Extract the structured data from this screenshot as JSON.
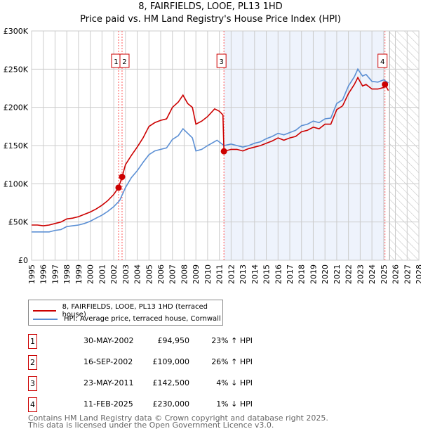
{
  "chart_data": {
    "type": "line",
    "title": "8, FAIRFIELDS, LOOE, PL13 1HD",
    "subtitle": "Price paid vs. HM Land Registry's House Price Index (HPI)",
    "xlim": [
      1995,
      2028
    ],
    "ylim": [
      0,
      300000
    ],
    "x_ticks": [
      "1995",
      "1996",
      "1997",
      "1998",
      "1999",
      "2000",
      "2001",
      "2002",
      "2003",
      "2004",
      "2005",
      "2006",
      "2007",
      "2008",
      "2009",
      "2010",
      "2011",
      "2012",
      "2013",
      "2014",
      "2015",
      "2016",
      "2017",
      "2018",
      "2019",
      "2020",
      "2021",
      "2022",
      "2023",
      "2024",
      "2025",
      "2026",
      "2027",
      "2028"
    ],
    "y_ticks": [
      {
        "v": 0,
        "label": "£0"
      },
      {
        "v": 50000,
        "label": "£50K"
      },
      {
        "v": 100000,
        "label": "£100K"
      },
      {
        "v": 150000,
        "label": "£150K"
      },
      {
        "v": 200000,
        "label": "£200K"
      },
      {
        "v": 250000,
        "label": "£250K"
      },
      {
        "v": 300000,
        "label": "£300K"
      }
    ],
    "grid": true,
    "shaded_range": [
      2011.39,
      2025.11
    ],
    "future_hatch_from": 2025.5,
    "colors": {
      "property": "#cc0000",
      "hpi": "#5b8fd4",
      "shade": "#eef3fc",
      "vline": "#ff5555"
    },
    "series": [
      {
        "name": "8, FAIRFIELDS, LOOE, PL13 1HD (terraced house)",
        "x": [
          1995,
          1995.5,
          1996,
          1996.5,
          1997,
          1997.5,
          1998,
          1998.5,
          1999,
          1999.5,
          2000,
          2000.5,
          2001,
          2001.5,
          2002,
          2002.41,
          2002.71,
          2003,
          2003.5,
          2004,
          2004.5,
          2005,
          2005.5,
          2006,
          2006.5,
          2007,
          2007.5,
          2007.9,
          2008.3,
          2008.7,
          2009,
          2009.5,
          2010,
          2010.6,
          2011,
          2011.3,
          2011.39,
          2012,
          2012.5,
          2013,
          2013.5,
          2014,
          2014.5,
          2015,
          2015.5,
          2016,
          2016.5,
          2017,
          2017.5,
          2018,
          2018.5,
          2019,
          2019.5,
          2020,
          2020.5,
          2021,
          2021.5,
          2022,
          2022.5,
          2022.8,
          2023.2,
          2023.5,
          2024,
          2024.5,
          2025,
          2025.11,
          2025.4
        ],
        "values": [
          46000,
          46000,
          45000,
          46000,
          48000,
          50000,
          54000,
          55000,
          57000,
          60000,
          63000,
          67000,
          72000,
          78000,
          86000,
          94950,
          109000,
          125000,
          137000,
          148000,
          160000,
          175000,
          180000,
          183000,
          185000,
          200000,
          207000,
          216000,
          205000,
          200000,
          178000,
          182000,
          188000,
          198000,
          195000,
          190000,
          142500,
          145000,
          145000,
          143000,
          146000,
          148000,
          150000,
          153000,
          156000,
          160000,
          157000,
          160000,
          162000,
          168000,
          170000,
          174000,
          172000,
          178000,
          178000,
          197000,
          202000,
          218000,
          230000,
          239000,
          228000,
          230000,
          224000,
          224000,
          226000,
          230000,
          222000
        ]
      },
      {
        "name": "HPI: Average price, terraced house, Cornwall",
        "x": [
          1995,
          1995.5,
          1996,
          1996.5,
          1997,
          1997.5,
          1998,
          1998.5,
          1999,
          1999.5,
          2000,
          2000.5,
          2001,
          2001.5,
          2002,
          2002.5,
          2003,
          2003.5,
          2004,
          2004.5,
          2005,
          2005.5,
          2006,
          2006.5,
          2007,
          2007.5,
          2007.9,
          2008.3,
          2008.7,
          2009,
          2009.5,
          2010,
          2010.8,
          2011.4,
          2012,
          2012.5,
          2013,
          2013.5,
          2014,
          2014.5,
          2015,
          2015.5,
          2016,
          2016.5,
          2017,
          2017.5,
          2018,
          2018.5,
          2019,
          2019.5,
          2020,
          2020.5,
          2021,
          2021.5,
          2022,
          2022.5,
          2022.8,
          2023.2,
          2023.5,
          2024,
          2024.5,
          2025,
          2025.4
        ],
        "values": [
          37000,
          37000,
          37000,
          37000,
          39000,
          40000,
          44000,
          45000,
          46000,
          48000,
          51000,
          55000,
          59000,
          64000,
          70000,
          78000,
          95000,
          108000,
          117000,
          128000,
          138000,
          143000,
          145000,
          147000,
          158000,
          163000,
          172000,
          166000,
          160000,
          143000,
          145000,
          150000,
          157000,
          150000,
          152000,
          150000,
          148000,
          150000,
          153000,
          155000,
          159000,
          162000,
          166000,
          164000,
          167000,
          170000,
          176000,
          178000,
          182000,
          180000,
          185000,
          186000,
          205000,
          210000,
          228000,
          240000,
          250000,
          241000,
          243000,
          234000,
          233000,
          236000,
          232000
        ]
      }
    ],
    "sales": [
      {
        "id": "1",
        "x": 2002.41,
        "value": 94950
      },
      {
        "id": "2",
        "x": 2002.71,
        "value": 109000
      },
      {
        "id": "3",
        "x": 2011.39,
        "value": 142500
      },
      {
        "id": "4",
        "x": 2025.11,
        "value": 230000
      }
    ]
  },
  "legend": {
    "property": "8, FAIRFIELDS, LOOE, PL13 1HD (terraced house)",
    "hpi": "HPI: Average price, terraced house, Cornwall"
  },
  "table": [
    {
      "num": "1",
      "date": "30-MAY-2002",
      "price": "£94,950",
      "hpi": "23% ↑ HPI"
    },
    {
      "num": "2",
      "date": "16-SEP-2002",
      "price": "£109,000",
      "hpi": "26% ↑ HPI"
    },
    {
      "num": "3",
      "date": "23-MAY-2011",
      "price": "£142,500",
      "hpi": "4% ↓ HPI"
    },
    {
      "num": "4",
      "date": "11-FEB-2025",
      "price": "£230,000",
      "hpi": "1% ↓ HPI"
    }
  ],
  "footer": {
    "line1": "Contains HM Land Registry data © Crown copyright and database right 2025.",
    "line2": "This data is licensed under the Open Government Licence v3.0."
  }
}
